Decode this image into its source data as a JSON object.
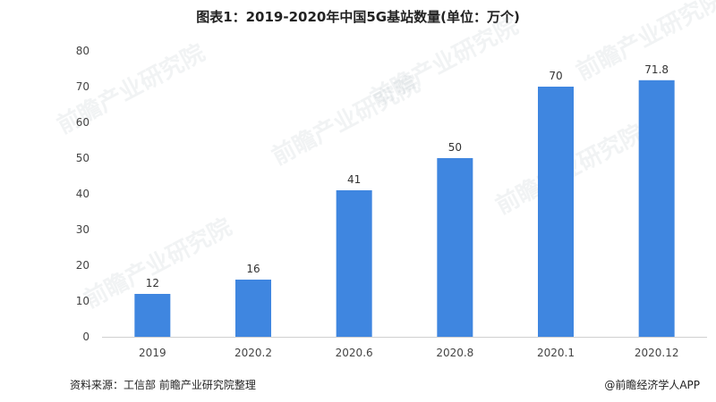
{
  "chart_data": {
    "type": "bar",
    "title": "图表1：2019-2020年中国5G基站数量(单位：万个)",
    "categories": [
      "2019",
      "2020.2",
      "2020.6",
      "2020.8",
      "2020.1",
      "2020.12"
    ],
    "values": [
      12,
      16,
      41,
      50,
      70,
      71.8
    ],
    "value_labels": [
      "12",
      "16",
      "41",
      "50",
      "70",
      "71.8"
    ],
    "xlabel": "",
    "ylabel": "",
    "ylim": [
      0,
      80
    ],
    "yticks": [
      0,
      10,
      20,
      30,
      40,
      50,
      60,
      70,
      80
    ],
    "grid": false,
    "legend": "none",
    "bar_color": "#3f86e0"
  },
  "footer": {
    "source": "资料来源：工信部 前瞻产业研究院整理",
    "credit": "@前瞻经济学人APP"
  },
  "watermark": {
    "text": "前瞻产业研究院"
  }
}
